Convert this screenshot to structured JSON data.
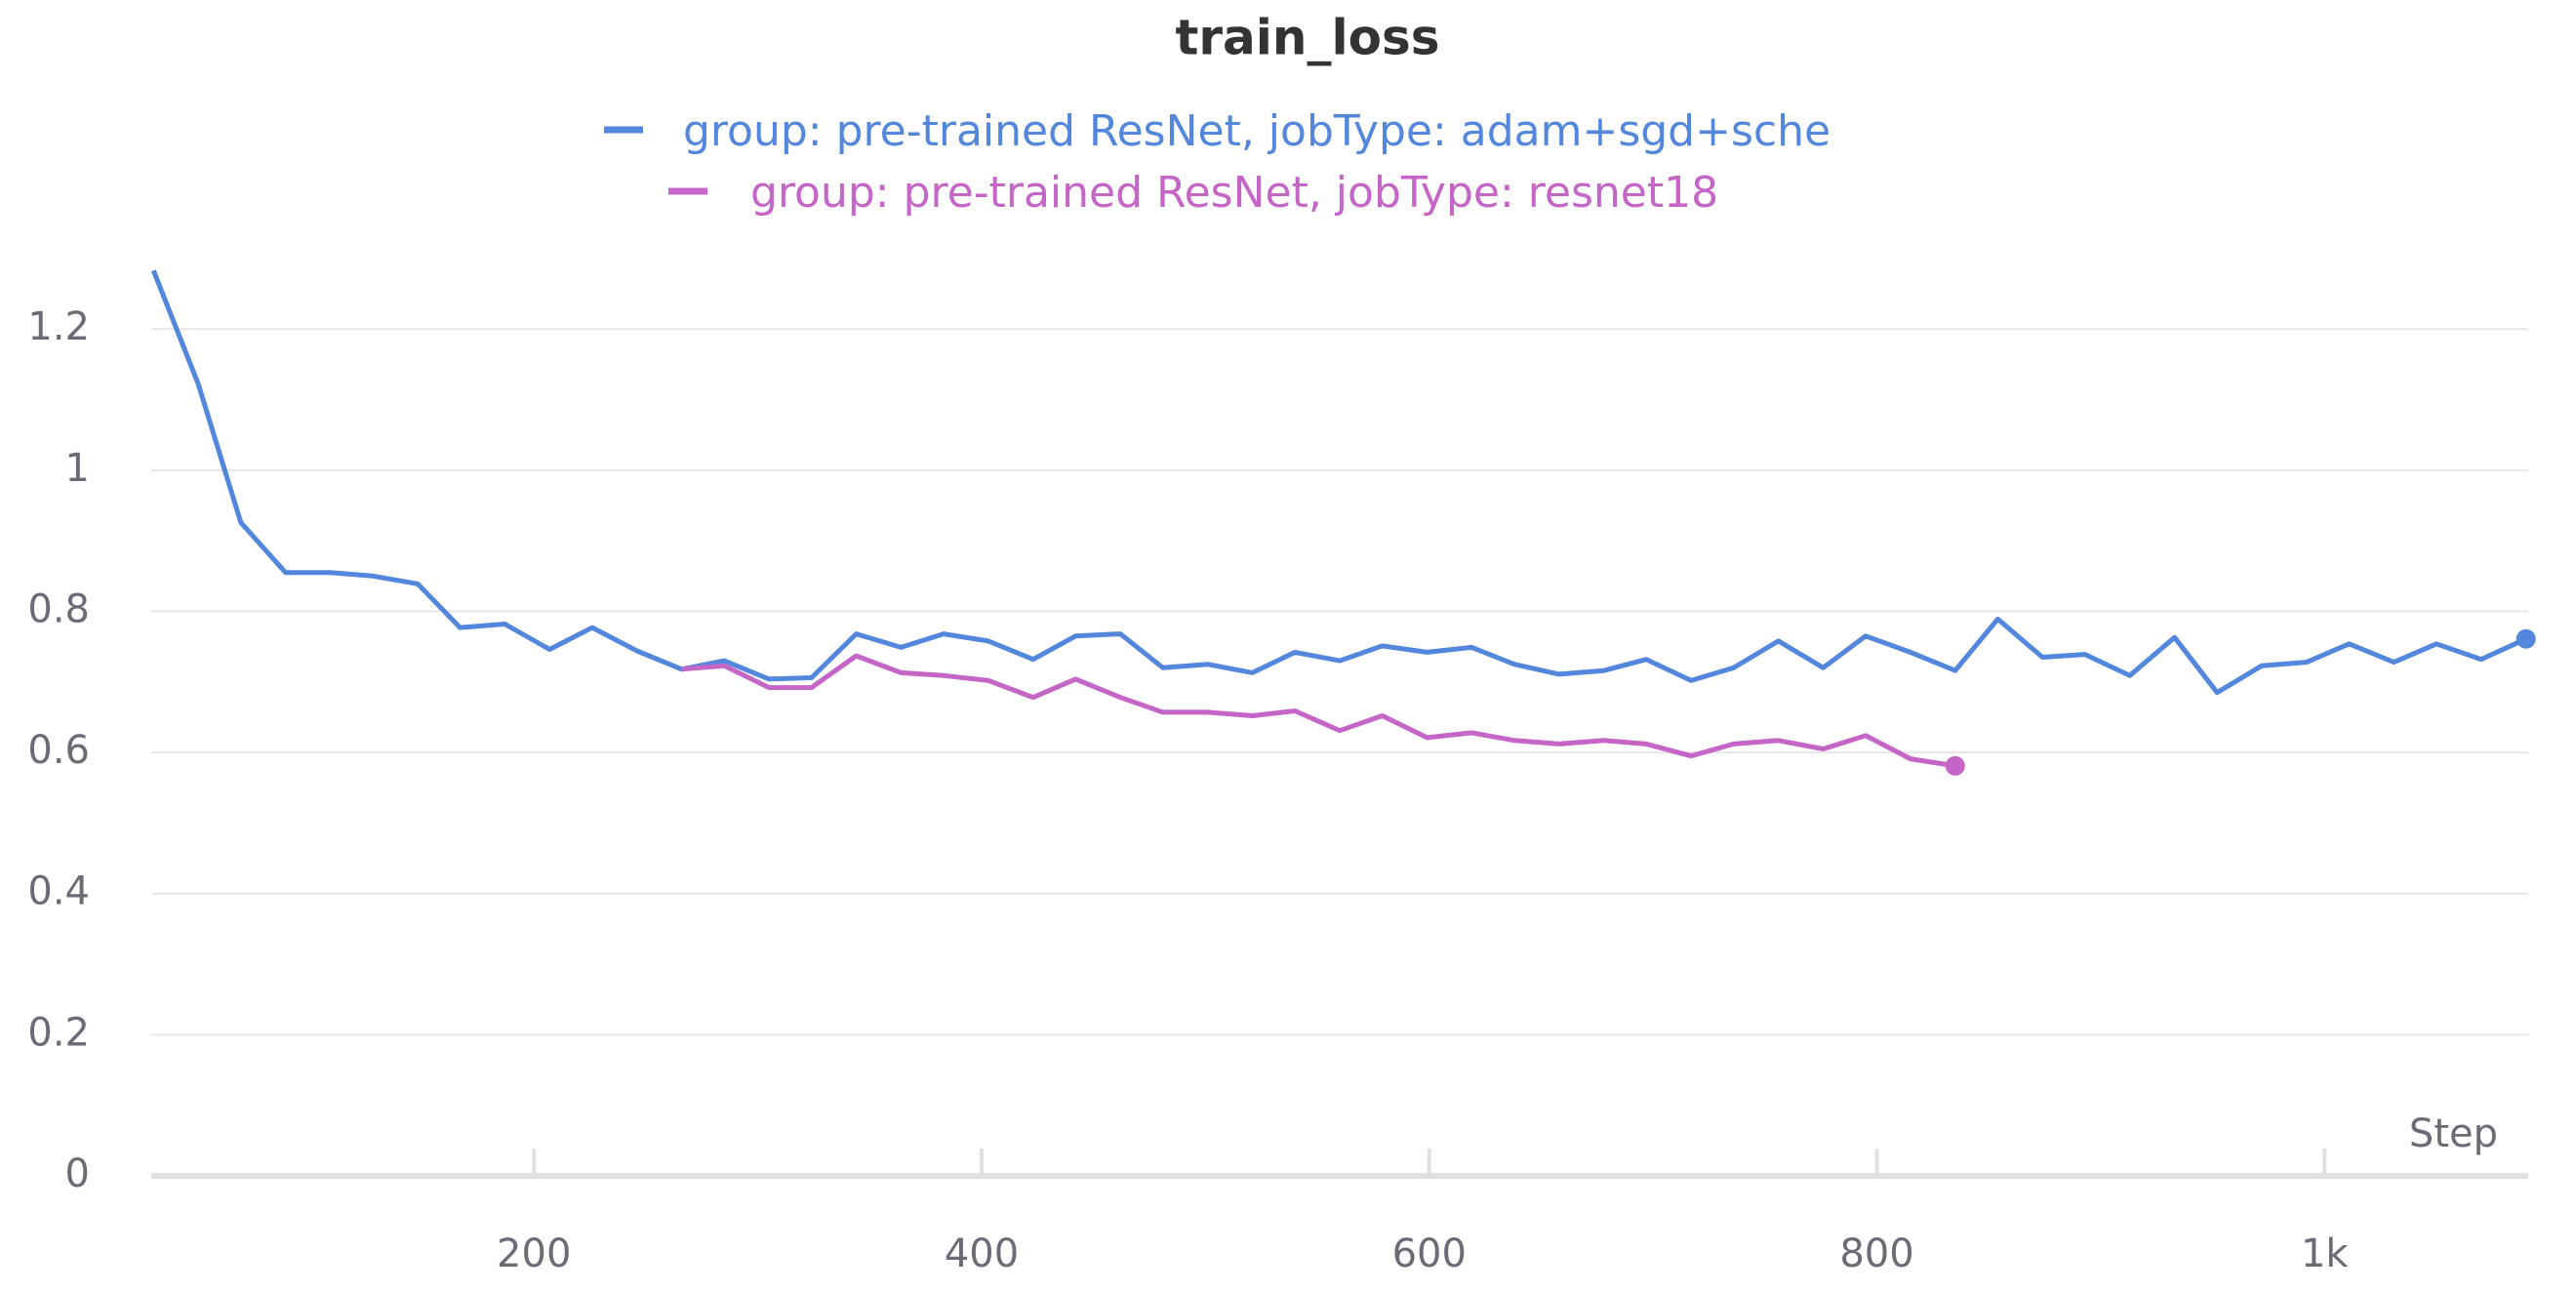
{
  "chart_data": {
    "type": "line",
    "title": "train_loss",
    "x_label": "Step",
    "x": [
      30,
      50,
      69,
      89,
      109,
      128,
      148,
      167,
      187,
      207,
      226,
      246,
      266,
      285,
      305,
      324,
      344,
      364,
      383,
      403,
      423,
      442,
      462,
      481,
      501,
      521,
      540,
      560,
      579,
      599,
      619,
      638,
      658,
      678,
      697,
      717,
      736,
      756,
      776,
      795,
      815,
      835,
      854,
      874,
      893,
      913,
      933,
      952,
      972,
      992,
      1011,
      1031,
      1050,
      1070,
      1090
    ],
    "series": [
      {
        "name": "group: pre-trained ResNet, jobType: adam+sgd+sche",
        "color": "#5387dd",
        "values": [
          1.283,
          1.122,
          0.926,
          0.855,
          0.855,
          0.85,
          0.839,
          0.777,
          0.782,
          0.746,
          0.777,
          0.744,
          0.718,
          0.73,
          0.704,
          0.706,
          0.768,
          0.749,
          0.768,
          0.758,
          0.732,
          0.765,
          0.768,
          0.72,
          0.725,
          0.713,
          0.742,
          0.73,
          0.751,
          0.742,
          0.749,
          0.725,
          0.711,
          0.716,
          0.732,
          0.702,
          0.72,
          0.758,
          0.72,
          0.765,
          0.742,
          0.716,
          0.789,
          0.735,
          0.739,
          0.709,
          0.763,
          0.685,
          0.723,
          0.728,
          0.754,
          0.728,
          0.754,
          0.732,
          0.761
        ]
      },
      {
        "name": "group: pre-trained ResNet, jobType: resnet18",
        "color": "#c565c7",
        "values": [
          null,
          null,
          null,
          null,
          null,
          null,
          null,
          null,
          null,
          null,
          null,
          null,
          0.718,
          0.723,
          0.692,
          0.692,
          0.737,
          0.713,
          0.709,
          0.702,
          0.678,
          0.704,
          0.678,
          0.657,
          0.657,
          0.652,
          0.659,
          0.631,
          0.652,
          0.621,
          0.628,
          0.617,
          0.612,
          0.617,
          0.612,
          0.595,
          0.612,
          0.617,
          0.605,
          0.624,
          0.591,
          0.581,
          null,
          null,
          null,
          null,
          null,
          null,
          null,
          null,
          null,
          null,
          null,
          null,
          null
        ]
      }
    ],
    "xlim": [
      29,
      1091
    ],
    "ylim": [
      0,
      1.34
    ],
    "xticks": [
      200,
      400,
      600,
      800,
      {
        "value": 1000,
        "label": "1k"
      }
    ],
    "yticks": [
      0,
      0.2,
      0.4,
      0.6,
      0.8,
      1,
      1.2
    ],
    "grid": true
  }
}
